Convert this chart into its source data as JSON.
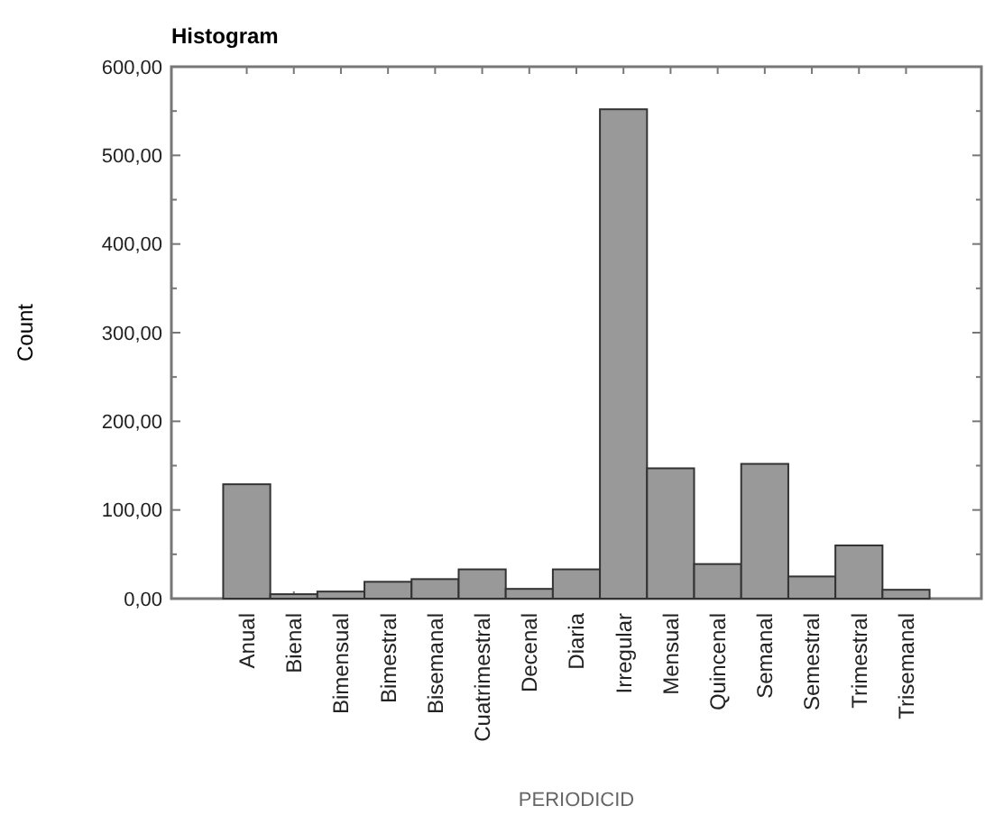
{
  "chart_data": {
    "type": "bar",
    "title": "Histogram",
    "xlabel": "PERIODICID",
    "ylabel": "Count",
    "categories": [
      "Anual",
      "Bienal",
      "Bimensual",
      "Bimestral",
      "Bisemanal",
      "Cuatrimestral",
      "Decenal",
      "Diaria",
      "Irregular",
      "Mensual",
      "Quincenal",
      "Semanal",
      "Semestral",
      "Trimestral",
      "Trisemanal"
    ],
    "values": [
      129,
      5,
      8,
      19,
      22,
      33,
      11,
      33,
      552,
      147,
      39,
      152,
      25,
      60,
      10
    ],
    "color": "#999999",
    "ylim": [
      0,
      600
    ],
    "yticks": [
      {
        "value": 0,
        "label": "0,00"
      },
      {
        "value": 50,
        "label": null
      },
      {
        "value": 100,
        "label": "100,00"
      },
      {
        "value": 150,
        "label": null
      },
      {
        "value": 200,
        "label": "200,00"
      },
      {
        "value": 250,
        "label": null
      },
      {
        "value": 300,
        "label": "300,00"
      },
      {
        "value": 350,
        "label": null
      },
      {
        "value": 400,
        "label": "400,00"
      },
      {
        "value": 450,
        "label": null
      },
      {
        "value": 500,
        "label": "500,00"
      },
      {
        "value": 550,
        "label": null
      },
      {
        "value": 600,
        "label": "600,00"
      }
    ],
    "grid": false
  }
}
